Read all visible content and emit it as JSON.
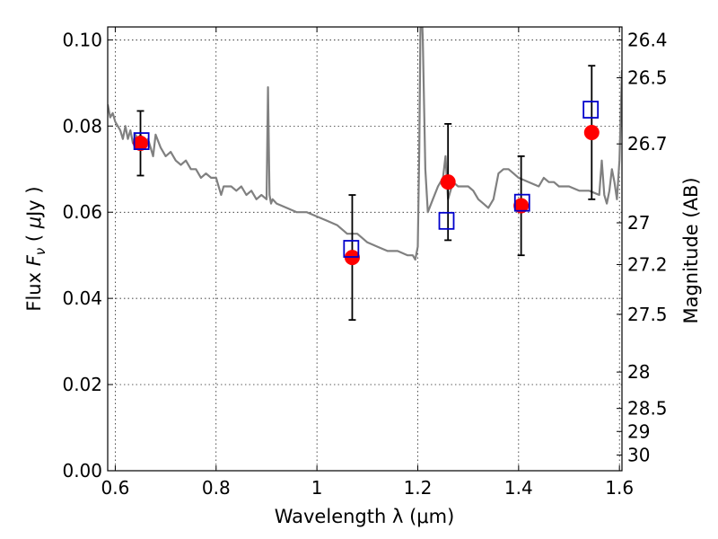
{
  "chart_data": {
    "type": "scatter",
    "title": "",
    "xlabel": "Wavelength  λ (μm)",
    "ylabel_parts": [
      "Flux  ",
      "F",
      "ν",
      "  ( ",
      "μ",
      "Jy )"
    ],
    "ylabel_right": "Magnitude (AB)",
    "xlim": [
      0.585,
      1.605
    ],
    "ylim": [
      0.0,
      0.103
    ],
    "grid": true,
    "x_ticks": [
      0.6,
      0.8,
      1.0,
      1.2,
      1.4,
      1.6
    ],
    "x_tick_labels": [
      "0.6",
      "0.8",
      "1",
      "1.2",
      "1.4",
      "1.6"
    ],
    "y_ticks": [
      0.0,
      0.02,
      0.04,
      0.06,
      0.08,
      0.1
    ],
    "y_tick_labels": [
      "0.00",
      "0.02",
      "0.04",
      "0.06",
      "0.08",
      "0.10"
    ],
    "right_ticks": [
      {
        "mag": 26.4,
        "label": "26.4"
      },
      {
        "mag": 26.5,
        "label": "26.5"
      },
      {
        "mag": 26.7,
        "label": "26.7"
      },
      {
        "mag": 27.0,
        "label": "27"
      },
      {
        "mag": 27.2,
        "label": "27.2"
      },
      {
        "mag": 27.5,
        "label": "27.5"
      },
      {
        "mag": 28.0,
        "label": "28"
      },
      {
        "mag": 28.5,
        "label": "28.5"
      },
      {
        "mag": 29.0,
        "label": "29"
      },
      {
        "mag": 30.0,
        "label": "30"
      }
    ],
    "model_spectrum": {
      "color": "#808080",
      "x": [
        0.585,
        0.59,
        0.595,
        0.6,
        0.605,
        0.61,
        0.615,
        0.62,
        0.625,
        0.63,
        0.635,
        0.64,
        0.645,
        0.65,
        0.655,
        0.66,
        0.665,
        0.67,
        0.675,
        0.68,
        0.69,
        0.7,
        0.71,
        0.72,
        0.73,
        0.74,
        0.75,
        0.76,
        0.77,
        0.78,
        0.79,
        0.8,
        0.805,
        0.81,
        0.815,
        0.82,
        0.83,
        0.84,
        0.85,
        0.86,
        0.87,
        0.88,
        0.89,
        0.9,
        0.903,
        0.906,
        0.909,
        0.912,
        0.92,
        0.94,
        0.96,
        0.98,
        1.0,
        1.02,
        1.04,
        1.06,
        1.08,
        1.1,
        1.12,
        1.14,
        1.16,
        1.18,
        1.19,
        1.195,
        1.2,
        1.203,
        1.206,
        1.21,
        1.215,
        1.22,
        1.23,
        1.24,
        1.25,
        1.255,
        1.26,
        1.27,
        1.28,
        1.29,
        1.3,
        1.31,
        1.32,
        1.33,
        1.34,
        1.35,
        1.36,
        1.37,
        1.38,
        1.39,
        1.4,
        1.42,
        1.44,
        1.45,
        1.46,
        1.47,
        1.48,
        1.5,
        1.52,
        1.54,
        1.56,
        1.565,
        1.57,
        1.575,
        1.58,
        1.585,
        1.59,
        1.595,
        1.6,
        1.605
      ],
      "y": [
        0.085,
        0.082,
        0.083,
        0.081,
        0.08,
        0.079,
        0.077,
        0.08,
        0.077,
        0.079,
        0.076,
        0.078,
        0.077,
        0.078,
        0.077,
        0.076,
        0.077,
        0.075,
        0.073,
        0.078,
        0.075,
        0.073,
        0.074,
        0.072,
        0.071,
        0.072,
        0.07,
        0.07,
        0.068,
        0.069,
        0.068,
        0.068,
        0.066,
        0.064,
        0.066,
        0.066,
        0.066,
        0.065,
        0.066,
        0.064,
        0.065,
        0.063,
        0.064,
        0.063,
        0.089,
        0.064,
        0.062,
        0.063,
        0.062,
        0.061,
        0.06,
        0.06,
        0.059,
        0.058,
        0.057,
        0.055,
        0.055,
        0.053,
        0.052,
        0.051,
        0.051,
        0.05,
        0.05,
        0.049,
        0.052,
        0.075,
        0.115,
        0.1,
        0.07,
        0.06,
        0.063,
        0.066,
        0.068,
        0.073,
        0.063,
        0.067,
        0.066,
        0.066,
        0.066,
        0.065,
        0.063,
        0.062,
        0.061,
        0.063,
        0.069,
        0.07,
        0.07,
        0.069,
        0.068,
        0.067,
        0.066,
        0.068,
        0.067,
        0.067,
        0.066,
        0.066,
        0.065,
        0.065,
        0.064,
        0.072,
        0.064,
        0.062,
        0.065,
        0.07,
        0.067,
        0.063,
        0.072,
        0.093
      ],
      "clip_max": 0.103
    },
    "series": [
      {
        "color": "#ff0000",
        "marker": "circle",
        "x": [
          0.65,
          1.07,
          1.26,
          1.405,
          1.545
        ],
        "y": [
          0.076,
          0.0495,
          0.067,
          0.0615,
          0.0785
        ],
        "yerr": [
          0.0075,
          0.0145,
          0.0135,
          0.0115,
          0.0155
        ]
      },
      {
        "color": "#0000cc",
        "marker": "open-square",
        "x": [
          0.652,
          1.068,
          1.257,
          1.407,
          1.543
        ],
        "y": [
          0.0765,
          0.0515,
          0.058,
          0.0622,
          0.0838
        ]
      }
    ]
  }
}
